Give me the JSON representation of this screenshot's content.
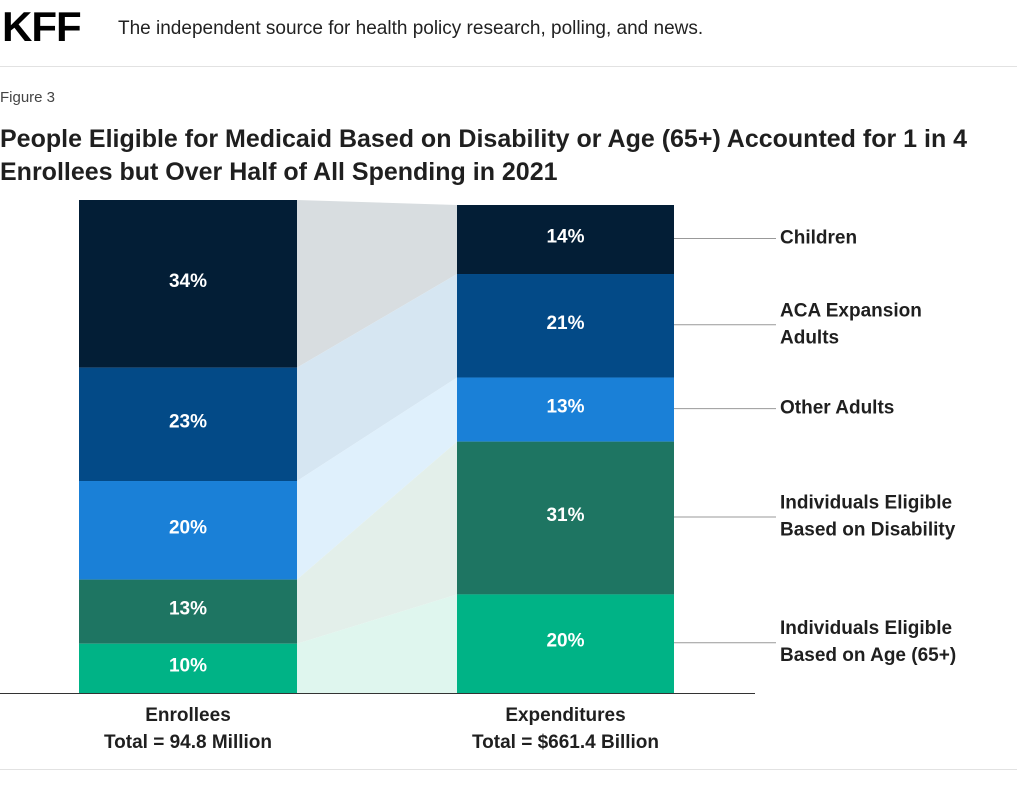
{
  "header": {
    "logo": "KFF",
    "tagline": "The independent source for health policy research, polling, and news."
  },
  "figure": {
    "label": "Figure 3",
    "title_line1": "People Eligible for Medicaid Based on Disability or Age (65+) Accounted for 1 in 4",
    "title_line2": "Enrollees but Over Half of All Spending in 2021"
  },
  "chart_data": {
    "type": "bar",
    "stacked": true,
    "normalized": true,
    "categories": [
      "Enrollees",
      "Expenditures"
    ],
    "category_subtitles": [
      "Total = 94.8 Million",
      "Total = $661.4 Billion"
    ],
    "series": [
      {
        "name": "Children",
        "label_lines": [
          "Children"
        ],
        "color": "#031e36",
        "values": [
          34,
          14
        ]
      },
      {
        "name": "ACA Expansion Adults",
        "label_lines": [
          "ACA Expansion",
          "Adults"
        ],
        "color": "#034a87",
        "values": [
          23,
          21
        ]
      },
      {
        "name": "Other Adults",
        "label_lines": [
          "Other Adults"
        ],
        "color": "#1a80d7",
        "values": [
          20,
          13
        ]
      },
      {
        "name": "Individuals Eligible Based on Disability",
        "label_lines": [
          "Individuals Eligible",
          "Based on Disability"
        ],
        "color": "#1e7562",
        "values": [
          13,
          31
        ]
      },
      {
        "name": "Individuals Eligible Based on Age (65+)",
        "label_lines": [
          "Individuals Eligible",
          "Based on Age (65+)"
        ],
        "color": "#00b386",
        "values": [
          10,
          20
        ]
      }
    ],
    "connector_colors": [
      "#d8dde0",
      "#d6e6f2",
      "#dff0fc",
      "#e3efea",
      "#dff6ee"
    ],
    "value_suffix": "%",
    "ylim": [
      0,
      100
    ]
  }
}
